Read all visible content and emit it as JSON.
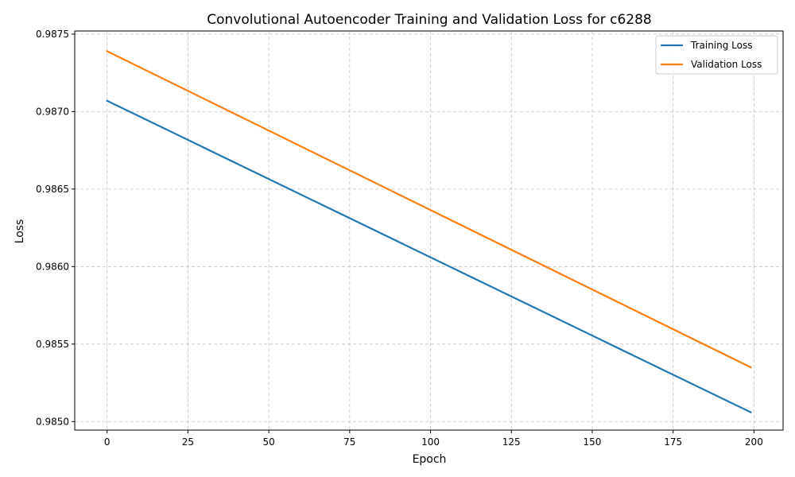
{
  "chart_data": {
    "type": "line",
    "title": "Convolutional Autoencoder Training and Validation Loss for c6288",
    "xlabel": "Epoch",
    "ylabel": "Loss",
    "xlim": [
      -10,
      209
    ],
    "ylim": [
      0.984945,
      0.98752
    ],
    "xticks": [
      0,
      25,
      50,
      75,
      100,
      125,
      150,
      175,
      200
    ],
    "yticks": [
      0.985,
      0.9855,
      0.986,
      0.9865,
      0.987,
      0.9875
    ],
    "ytick_labels": [
      "0.9850",
      "0.9855",
      "0.9860",
      "0.9865",
      "0.9870",
      "0.9875"
    ],
    "grid": true,
    "legend": "top-right",
    "series": [
      {
        "name": "Training Loss",
        "color": "#1f77b4",
        "x": [
          0,
          199
        ],
        "y": [
          0.98707,
          0.98506
        ]
      },
      {
        "name": "Validation Loss",
        "color": "#ff7f0e",
        "x": [
          0,
          199
        ],
        "y": [
          0.98739,
          0.98535
        ]
      }
    ]
  }
}
